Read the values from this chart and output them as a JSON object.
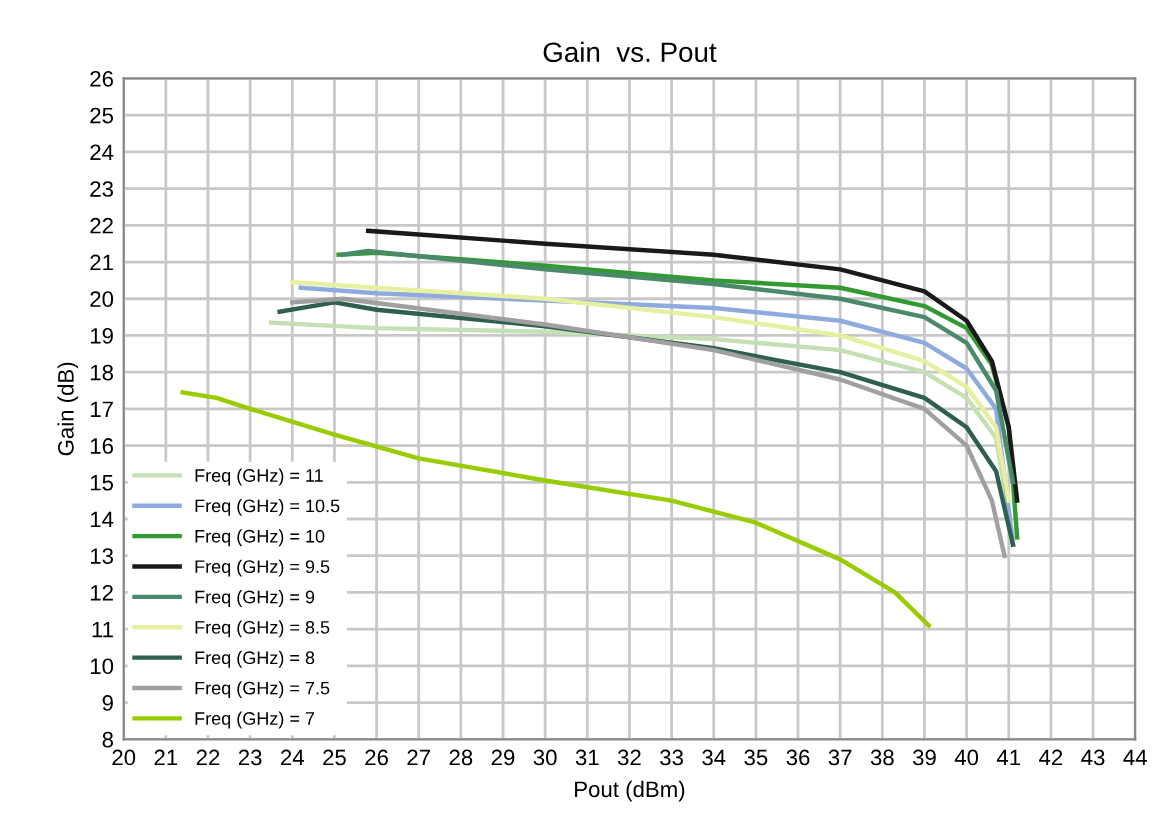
{
  "chart_data": {
    "type": "line",
    "title": "Gain  vs. Pout",
    "xlabel": "Pout (dBm)",
    "ylabel": "Gain (dB)",
    "xlim": [
      20,
      44
    ],
    "xticks": [
      20,
      21,
      22,
      23,
      24,
      25,
      26,
      27,
      28,
      29,
      30,
      31,
      32,
      33,
      34,
      35,
      36,
      37,
      38,
      39,
      40,
      41,
      42,
      43,
      44
    ],
    "ylim": [
      8,
      26
    ],
    "yticks": [
      8,
      9,
      10,
      11,
      12,
      13,
      14,
      15,
      16,
      17,
      18,
      19,
      20,
      21,
      22,
      23,
      24,
      25,
      26
    ],
    "grid": true,
    "legend": "bottom left",
    "marker": "none",
    "line_style": "solid",
    "series": [
      {
        "name": "Freq (GHz) = 11",
        "color": "#c5e0b4",
        "x": [
          23.5,
          26,
          30,
          34,
          37,
          39,
          40,
          40.7,
          41.1
        ],
        "values": [
          19.35,
          19.2,
          19.1,
          18.9,
          18.6,
          18.0,
          17.3,
          16.2,
          13.5
        ]
      },
      {
        "name": "Freq (GHz) = 10.5",
        "color": "#8faadc",
        "x": [
          24.2,
          26,
          30,
          34,
          37,
          39,
          40,
          40.7,
          41.1
        ],
        "values": [
          20.3,
          20.15,
          19.95,
          19.75,
          19.4,
          18.8,
          18.1,
          17.0,
          13.3
        ]
      },
      {
        "name": "Freq (GHz) = 10",
        "color": "#339933",
        "x": [
          25.1,
          26,
          30,
          34,
          37,
          39,
          40,
          40.6,
          41.0,
          41.2
        ],
        "values": [
          21.2,
          21.25,
          20.9,
          20.5,
          20.3,
          19.8,
          19.2,
          18.2,
          16.5,
          13.5
        ]
      },
      {
        "name": "Freq (GHz) = 9.5",
        "color": "#1a1a1a",
        "x": [
          25.8,
          30,
          34,
          37,
          39,
          40,
          40.6,
          41.0,
          41.2
        ],
        "values": [
          21.85,
          21.5,
          21.2,
          20.8,
          20.2,
          19.4,
          18.3,
          16.5,
          14.5
        ]
      },
      {
        "name": "Freq (GHz) = 9",
        "color": "#4a8a6a",
        "x": [
          25.2,
          25.8,
          30,
          34,
          37,
          39,
          40,
          40.7,
          41.1
        ],
        "values": [
          21.2,
          21.3,
          20.8,
          20.4,
          20.0,
          19.5,
          18.8,
          17.5,
          15.0
        ]
      },
      {
        "name": "Freq (GHz) = 8.5",
        "color": "#e6f0a0",
        "x": [
          24.0,
          30,
          34,
          37,
          39,
          40,
          40.7,
          41.0
        ],
        "values": [
          20.45,
          20.0,
          19.5,
          19.0,
          18.3,
          17.6,
          16.5,
          14.5
        ]
      },
      {
        "name": "Freq (GHz) = 8",
        "color": "#2f5f50",
        "x": [
          23.7,
          25.0,
          26,
          30,
          34,
          37,
          39,
          40,
          40.7,
          41.1
        ],
        "values": [
          19.65,
          19.9,
          19.7,
          19.25,
          18.65,
          18.0,
          17.3,
          16.5,
          15.3,
          13.3
        ]
      },
      {
        "name": "Freq (GHz) = 7.5",
        "color": "#a0a0a0",
        "x": [
          24.0,
          25.2,
          30,
          34,
          37,
          39,
          40,
          40.6,
          40.9
        ],
        "values": [
          19.9,
          20.0,
          19.3,
          18.6,
          17.8,
          17.0,
          16.0,
          14.5,
          13.0
        ]
      },
      {
        "name": "Freq (GHz) = 7",
        "color": "#99cc00",
        "x": [
          21.4,
          22.2,
          23,
          25,
          27,
          30,
          33,
          35,
          37,
          38.3,
          39.1
        ],
        "values": [
          17.45,
          17.3,
          17.0,
          16.3,
          15.65,
          15.05,
          14.5,
          13.9,
          12.9,
          12.0,
          11.1
        ]
      }
    ]
  }
}
